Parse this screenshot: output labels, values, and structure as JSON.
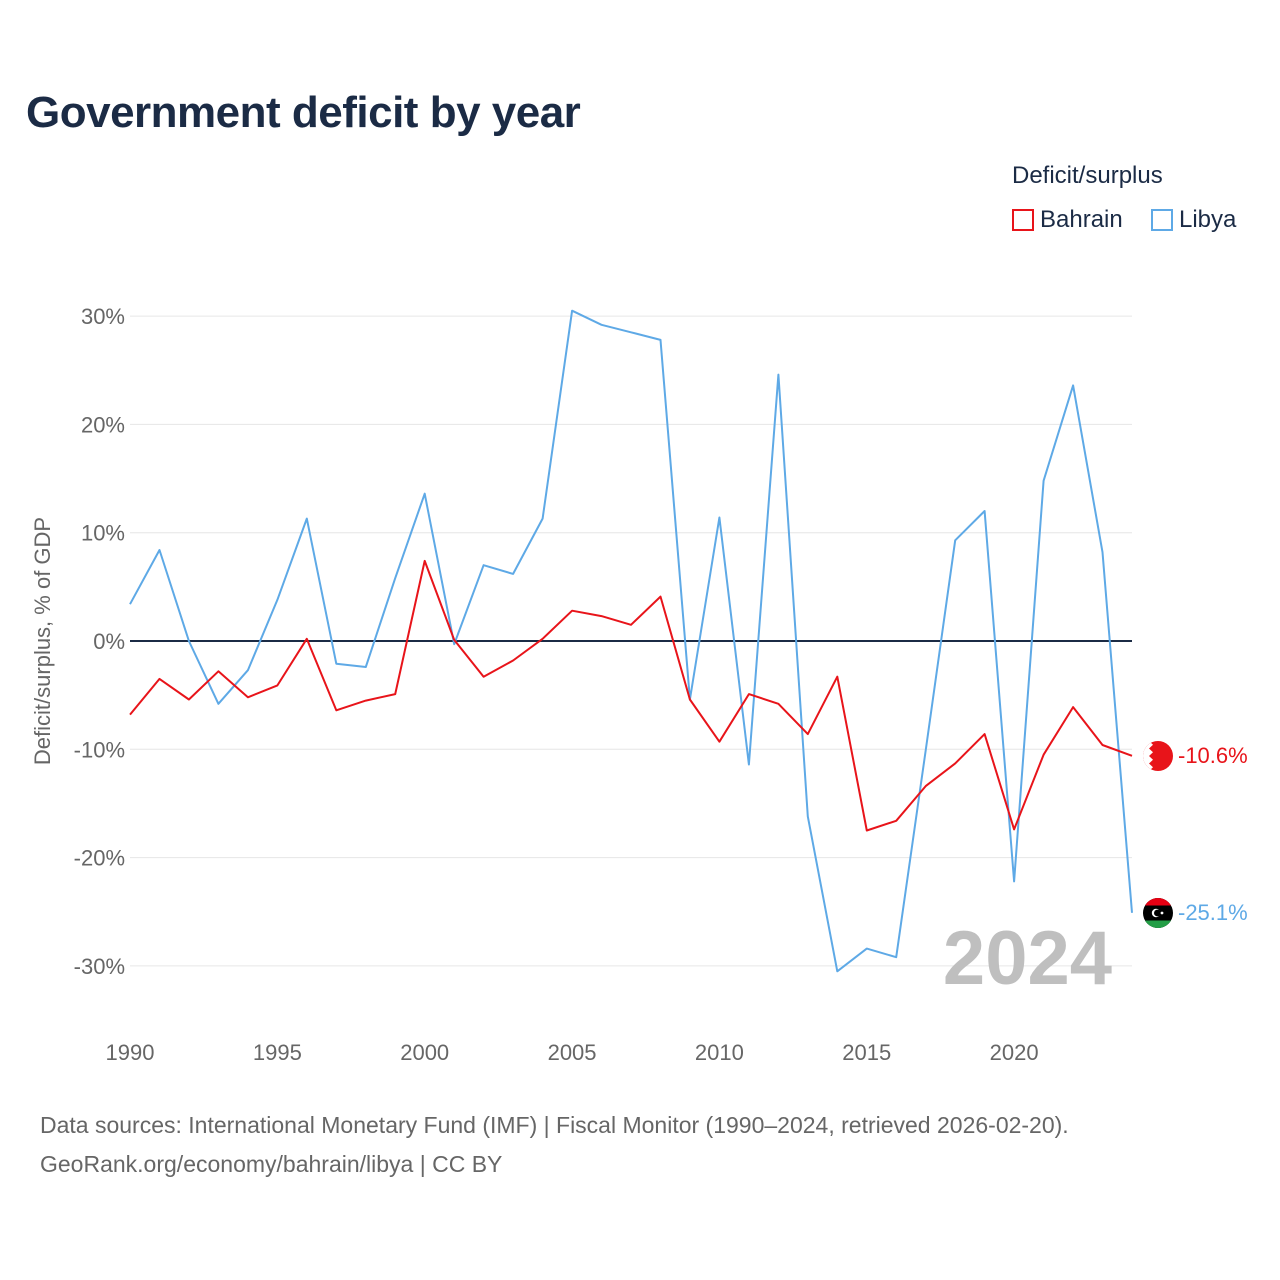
{
  "title": "Government deficit by year",
  "legend": {
    "title": "Deficit/surplus",
    "items": [
      {
        "label": "Bahrain",
        "color": "#e8141a"
      },
      {
        "label": "Libya",
        "color": "#5ea9e6"
      }
    ]
  },
  "footer": {
    "line1": "Data sources: International Monetary Fund (IMF) | Fiscal Monitor (1990–2024, retrieved 2026-02-20).",
    "line2": "GeoRank.org/economy/bahrain/libya | CC BY"
  },
  "chart_data": {
    "type": "line",
    "title": "Government deficit by year",
    "xlabel": "",
    "ylabel": "Deficit/surplus, % of GDP",
    "xlim": [
      1990,
      2024
    ],
    "ylim": [
      -35,
      32
    ],
    "yticks": [
      30,
      20,
      10,
      0,
      -10,
      -20,
      -30
    ],
    "ytick_labels": [
      "30%",
      "20%",
      "10%",
      "0%",
      "-10%",
      "-20%",
      "-30%"
    ],
    "xticks": [
      1990,
      1995,
      2000,
      2005,
      2010,
      2015,
      2020
    ],
    "xtick_labels": [
      "1990",
      "1995",
      "2000",
      "2005",
      "2010",
      "2015",
      "2020"
    ],
    "grid": true,
    "legend_position": "top-right",
    "highlight_year": "2024",
    "x": [
      1990,
      1991,
      1992,
      1993,
      1994,
      1995,
      1996,
      1997,
      1998,
      1999,
      2000,
      2001,
      2002,
      2003,
      2004,
      2005,
      2006,
      2007,
      2008,
      2009,
      2010,
      2011,
      2012,
      2013,
      2014,
      2015,
      2016,
      2017,
      2018,
      2019,
      2020,
      2021,
      2022,
      2023,
      2024
    ],
    "series": [
      {
        "name": "Bahrain",
        "color": "#e8141a",
        "end_label": "-10.6%",
        "values": [
          -6.8,
          -3.5,
          -5.4,
          -2.8,
          -5.2,
          -4.1,
          0.2,
          -6.4,
          -5.5,
          -4.9,
          7.4,
          0.1,
          -3.3,
          -1.8,
          0.2,
          2.8,
          2.3,
          1.5,
          4.1,
          -5.4,
          -9.3,
          -4.9,
          -5.8,
          -8.6,
          -3.3,
          -17.5,
          -16.6,
          -13.4,
          -11.3,
          -8.6,
          -17.4,
          -10.5,
          -6.1,
          -9.6,
          -10.6
        ]
      },
      {
        "name": "Libya",
        "color": "#5ea9e6",
        "end_label": "-25.1%",
        "values": [
          3.4,
          8.4,
          0.0,
          -5.8,
          -2.7,
          3.8,
          11.3,
          -2.1,
          -2.4,
          5.8,
          13.6,
          -0.3,
          7.0,
          6.2,
          11.3,
          30.5,
          29.2,
          28.5,
          27.8,
          -5.4,
          11.4,
          -11.4,
          24.6,
          -16.2,
          -30.5,
          -28.4,
          -29.2,
          -10.1,
          9.3,
          12.0,
          -22.2,
          14.8,
          23.6,
          8.2,
          -25.1
        ]
      }
    ]
  }
}
